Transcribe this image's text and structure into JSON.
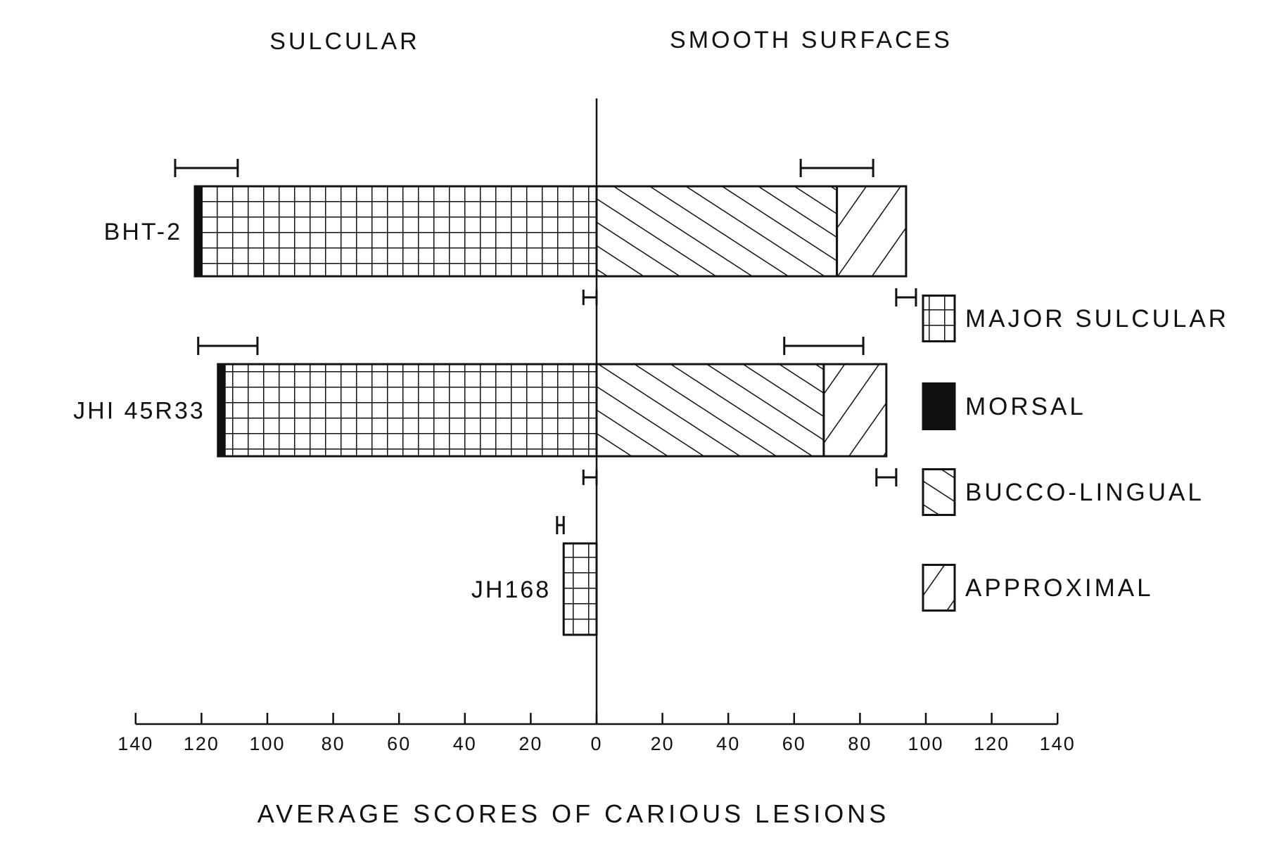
{
  "chart_data": {
    "type": "bar",
    "orientation": "horizontal-diverging",
    "left_heading": "SULCULAR",
    "right_heading": "SMOOTH SURFACES",
    "xlabel": "AVERAGE SCORES OF CARIOUS LESIONS",
    "xlim": [
      -140,
      140
    ],
    "tick_labels": [
      "140",
      "120",
      "100",
      "80",
      "60",
      "40",
      "20",
      "0",
      "20",
      "40",
      "60",
      "80",
      "100",
      "120",
      "140"
    ],
    "tick_values": [
      -140,
      -120,
      -100,
      -80,
      -60,
      -40,
      -20,
      0,
      20,
      40,
      60,
      80,
      100,
      120,
      140
    ],
    "categories": [
      "BHT-2",
      "JHI 45R33",
      "JH168"
    ],
    "series": [
      {
        "name": "MAJOR SULCULAR",
        "side": "left",
        "pattern": "grid",
        "values": [
          120,
          113,
          10
        ]
      },
      {
        "name": "MORSAL",
        "side": "left",
        "pattern": "solid",
        "values": [
          2,
          2,
          0
        ]
      },
      {
        "name": "BUCCO-LINGUAL",
        "side": "right",
        "pattern": "diag-down",
        "values": [
          73,
          69,
          0
        ]
      },
      {
        "name": "APPROXIMAL",
        "side": "right",
        "pattern": "diag-up",
        "values": [
          21,
          19,
          0
        ]
      }
    ],
    "error_bars": [
      {
        "category": "BHT-2",
        "series": "MAJOR SULCULAR",
        "low": 109,
        "high": 128
      },
      {
        "category": "BHT-2",
        "series": "MORSAL",
        "low": 0,
        "high": 4
      },
      {
        "category": "BHT-2",
        "series": "BUCCO-LINGUAL",
        "low": 62,
        "high": 84
      },
      {
        "category": "BHT-2",
        "series": "APPROXIMAL",
        "low": 91,
        "high": 97
      },
      {
        "category": "JHI 45R33",
        "series": "MAJOR SULCULAR",
        "low": 103,
        "high": 121
      },
      {
        "category": "JHI 45R33",
        "series": "MORSAL",
        "low": 0,
        "high": 4
      },
      {
        "category": "JHI 45R33",
        "series": "BUCCO-LINGUAL",
        "low": 57,
        "high": 81
      },
      {
        "category": "JHI 45R33",
        "series": "APPROXIMAL",
        "low": 85,
        "high": 91
      },
      {
        "category": "JH168",
        "series": "MAJOR SULCULAR",
        "low": 10,
        "high": 12
      }
    ],
    "legend": {
      "placement": "right",
      "entries": [
        {
          "label": "MAJOR SULCULAR",
          "pattern": "grid"
        },
        {
          "label": "MORSAL",
          "pattern": "solid"
        },
        {
          "label": "BUCCO-LINGUAL",
          "pattern": "diag-down"
        },
        {
          "label": "APPROXIMAL",
          "pattern": "diag-up"
        }
      ]
    },
    "grid": false,
    "colors": {
      "ink": "#111111",
      "background": "#ffffff"
    }
  }
}
